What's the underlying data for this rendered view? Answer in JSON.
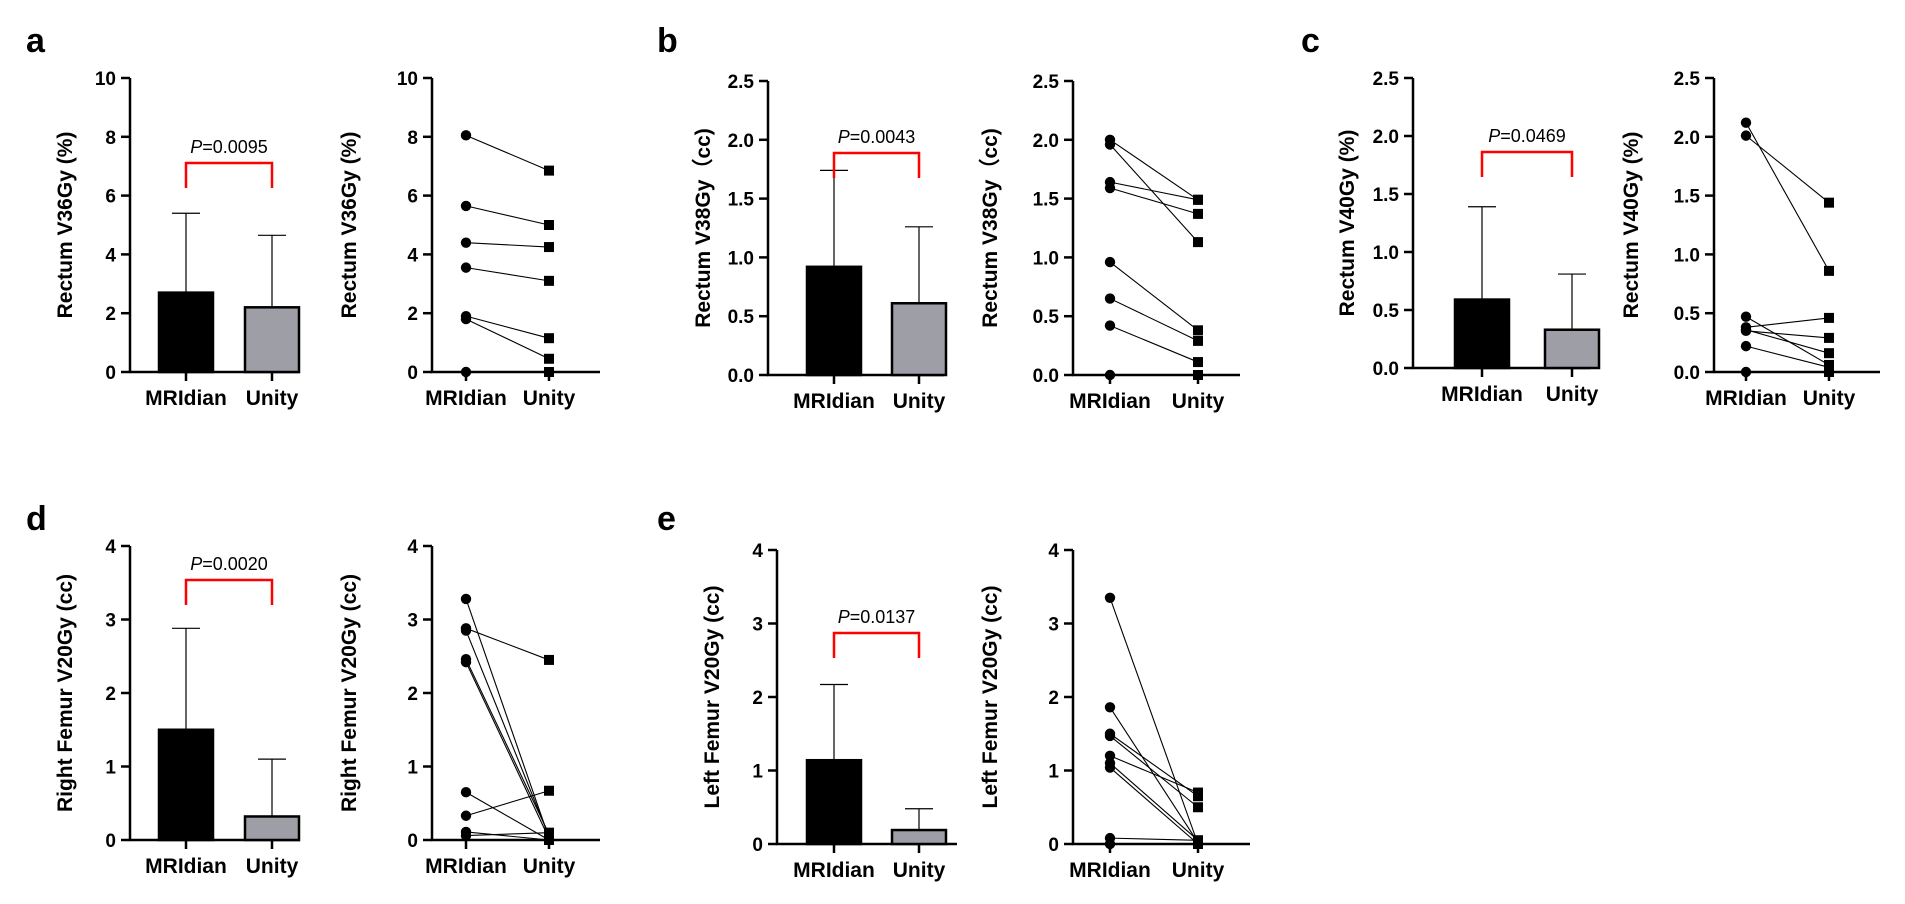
{
  "panels": [
    {
      "letter": "a"
    },
    {
      "letter": "b"
    },
    {
      "letter": "c"
    },
    {
      "letter": "d"
    },
    {
      "letter": "e"
    }
  ],
  "colors": {
    "bar_mridian": "#000000",
    "bar_unity": "#9e9ea6",
    "bracket": "#ff0000",
    "lines": "#000000"
  },
  "chart_data": [
    {
      "id": "a-bar",
      "panel": "a",
      "type": "bar",
      "categories": [
        "MRIdian",
        "Unity"
      ],
      "values": [
        2.7,
        2.2
      ],
      "error_upper": [
        5.4,
        4.65
      ],
      "ylabel": "Rectum V36Gy (%)",
      "ylim": [
        0,
        10
      ],
      "yticks": [
        "0",
        "2",
        "4",
        "6",
        "8",
        "10"
      ],
      "p_prefix": "P",
      "p_value": "=0.0095"
    },
    {
      "id": "a-paired",
      "panel": "a",
      "type": "line",
      "categories": [
        "MRIdian",
        "Unity"
      ],
      "ylabel": "Rectum V36Gy (%)",
      "ylim": [
        0,
        10
      ],
      "yticks": [
        "0",
        "2",
        "4",
        "6",
        "8",
        "10"
      ],
      "pairs": [
        [
          8.05,
          6.85
        ],
        [
          5.65,
          5.0
        ],
        [
          4.4,
          4.25
        ],
        [
          3.55,
          3.1
        ],
        [
          1.9,
          1.15
        ],
        [
          1.8,
          0.45
        ],
        [
          0.0,
          0.0
        ]
      ]
    },
    {
      "id": "b-bar",
      "panel": "b",
      "type": "bar",
      "categories": [
        "MRIdian",
        "Unity"
      ],
      "values": [
        0.92,
        0.61
      ],
      "error_upper": [
        1.74,
        1.26
      ],
      "ylabel": "Rectum V38Gy（cc)",
      "ylim": [
        0,
        2.5
      ],
      "yticks": [
        "0.0",
        "0.5",
        "1.0",
        "1.5",
        "2.0",
        "2.5"
      ],
      "p_prefix": "P",
      "p_value": "=0.0043"
    },
    {
      "id": "b-paired",
      "panel": "b",
      "type": "line",
      "categories": [
        "MRIdian",
        "Unity"
      ],
      "ylabel": "Rectum V38Gy（cc)",
      "ylim": [
        0,
        2.5
      ],
      "yticks": [
        "0.0",
        "0.5",
        "1.0",
        "1.5",
        "2.0",
        "2.5"
      ],
      "pairs": [
        [
          2.0,
          1.49
        ],
        [
          1.96,
          1.13
        ],
        [
          1.64,
          1.49
        ],
        [
          1.59,
          1.37
        ],
        [
          0.96,
          0.38
        ],
        [
          0.65,
          0.29
        ],
        [
          0.42,
          0.11
        ],
        [
          0.0,
          0.0
        ]
      ]
    },
    {
      "id": "c-bar",
      "panel": "c",
      "type": "bar",
      "categories": [
        "MRIdian",
        "Unity"
      ],
      "values": [
        0.59,
        0.33
      ],
      "error_upper": [
        1.39,
        0.81
      ],
      "ylabel": "Rectum V40Gy (%)",
      "ylim": [
        0,
        2.5
      ],
      "yticks": [
        "0.0",
        "0.5",
        "1.0",
        "1.5",
        "2.0",
        "2.5"
      ],
      "p_prefix": "P",
      "p_value": "=0.0469"
    },
    {
      "id": "c-paired",
      "panel": "c",
      "type": "line",
      "categories": [
        "MRIdian",
        "Unity"
      ],
      "ylabel": "Rectum V40Gy (%)",
      "ylim": [
        0,
        2.5
      ],
      "yticks": [
        "0.0",
        "0.5",
        "1.0",
        "1.5",
        "2.0",
        "2.5"
      ],
      "pairs": [
        [
          2.12,
          0.86
        ],
        [
          2.01,
          1.44
        ],
        [
          0.47,
          0.06
        ],
        [
          0.38,
          0.46
        ],
        [
          0.36,
          0.16
        ],
        [
          0.35,
          0.29
        ],
        [
          0.22,
          0.04
        ],
        [
          0.0,
          0.0
        ]
      ]
    },
    {
      "id": "d-bar",
      "panel": "d",
      "type": "bar",
      "categories": [
        "MRIdian",
        "Unity"
      ],
      "values": [
        1.5,
        0.32
      ],
      "error_upper": [
        2.88,
        1.1
      ],
      "ylabel": "Right Femur V20Gy (cc)",
      "ylim": [
        0,
        4
      ],
      "yticks": [
        "0",
        "1",
        "2",
        "3",
        "4"
      ],
      "p_prefix": "P",
      "p_value": "=0.0020"
    },
    {
      "id": "d-paired",
      "panel": "d",
      "type": "line",
      "categories": [
        "MRIdian",
        "Unity"
      ],
      "ylabel": "Right Femur V20Gy (cc)",
      "ylim": [
        0,
        4
      ],
      "yticks": [
        "0",
        "1",
        "2",
        "3",
        "4"
      ],
      "pairs": [
        [
          3.28,
          0.03
        ],
        [
          2.88,
          2.45
        ],
        [
          2.85,
          0.05
        ],
        [
          2.46,
          0.08
        ],
        [
          2.42,
          0.02
        ],
        [
          0.65,
          0.0
        ],
        [
          0.33,
          0.67
        ],
        [
          0.11,
          0.0
        ],
        [
          0.06,
          0.1
        ]
      ]
    },
    {
      "id": "e-bar",
      "panel": "e",
      "type": "bar",
      "categories": [
        "MRIdian",
        "Unity"
      ],
      "values": [
        1.14,
        0.19
      ],
      "error_upper": [
        2.17,
        0.48
      ],
      "ylabel": "Left Femur V20Gy (cc)",
      "ylim": [
        0,
        4
      ],
      "yticks": [
        "0",
        "1",
        "2",
        "3",
        "4"
      ],
      "p_prefix": "P",
      "p_value": "=0.0137"
    },
    {
      "id": "e-paired",
      "panel": "e",
      "type": "line",
      "categories": [
        "MRIdian",
        "Unity"
      ],
      "ylabel": "Left Femur V20Gy (cc)",
      "ylim": [
        0,
        4
      ],
      "yticks": [
        "0",
        "1",
        "2",
        "3",
        "4"
      ],
      "pairs": [
        [
          3.35,
          0.0
        ],
        [
          1.86,
          0.02
        ],
        [
          1.5,
          0.65
        ],
        [
          1.47,
          0.5
        ],
        [
          1.2,
          0.7
        ],
        [
          1.1,
          0.05
        ],
        [
          1.04,
          0.0
        ],
        [
          0.08,
          0.05
        ],
        [
          0.0,
          0.0
        ]
      ]
    }
  ]
}
